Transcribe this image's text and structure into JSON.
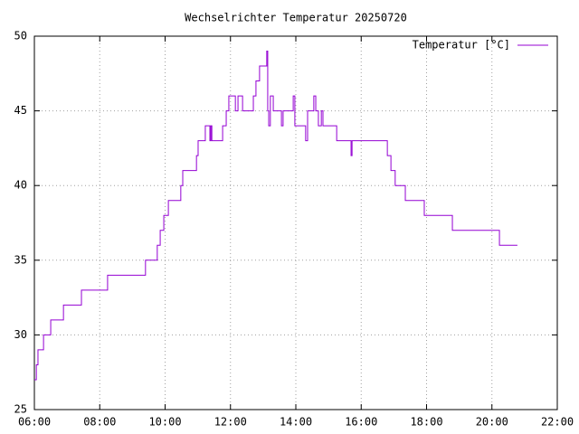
{
  "chart_data": {
    "type": "line",
    "title": "Wechselrichter Temperatur 20250720",
    "x": [
      6.0,
      6.06,
      6.06,
      6.11,
      6.11,
      6.28,
      6.28,
      6.5,
      6.5,
      6.89,
      6.89,
      7.44,
      7.44,
      8.24,
      8.24,
      9.4,
      9.4,
      9.76,
      9.76,
      9.85,
      9.85,
      9.96,
      9.96,
      10.1,
      10.1,
      10.48,
      10.48,
      10.54,
      10.54,
      10.96,
      10.96,
      11.01,
      11.01,
      11.23,
      11.23,
      11.37,
      11.37,
      11.4,
      11.4,
      11.43,
      11.43,
      11.76,
      11.76,
      11.87,
      11.87,
      11.95,
      11.95,
      12.15,
      12.15,
      12.23,
      12.23,
      12.37,
      12.37,
      12.7,
      12.7,
      12.78,
      12.78,
      12.89,
      12.89,
      13.11,
      13.11,
      13.14,
      13.14,
      13.17,
      13.17,
      13.22,
      13.22,
      13.31,
      13.31,
      13.56,
      13.56,
      13.61,
      13.61,
      13.92,
      13.92,
      13.97,
      13.97,
      14.3,
      14.3,
      14.36,
      14.36,
      14.55,
      14.55,
      14.61,
      14.61,
      14.69,
      14.69,
      14.78,
      14.78,
      14.83,
      14.83,
      15.25,
      15.25,
      15.69,
      15.69,
      15.72,
      15.72,
      16.8,
      16.8,
      16.91,
      16.91,
      17.04,
      17.04,
      17.35,
      17.35,
      17.93,
      17.93,
      18.79,
      18.79,
      20.23,
      20.23,
      20.78
    ],
    "series": [
      {
        "name": "Temperatur [°C]",
        "color": "#9400d3",
        "values": [
          27,
          27,
          28,
          28,
          29,
          29,
          30,
          30,
          31,
          31,
          32,
          32,
          33,
          33,
          34,
          34,
          35,
          35,
          36,
          36,
          37,
          37,
          38,
          38,
          39,
          39,
          40,
          40,
          41,
          41,
          42,
          42,
          43,
          43,
          44,
          44,
          43,
          43,
          44,
          44,
          43,
          43,
          44,
          44,
          45,
          45,
          46,
          46,
          45,
          45,
          46,
          46,
          45,
          45,
          46,
          46,
          47,
          47,
          48,
          48,
          49,
          49,
          45,
          45,
          44,
          44,
          46,
          46,
          45,
          45,
          44,
          44,
          45,
          45,
          46,
          46,
          44,
          44,
          43,
          43,
          45,
          45,
          46,
          46,
          45,
          45,
          44,
          44,
          45,
          45,
          44,
          44,
          43,
          43,
          42,
          42,
          43,
          43,
          42,
          42,
          41,
          41,
          40,
          40,
          39,
          39,
          38,
          38,
          37,
          37,
          36,
          36
        ]
      }
    ],
    "xlim": [
      6,
      22
    ],
    "xticks": [
      {
        "value": 6,
        "label": "06:00"
      },
      {
        "value": 8,
        "label": "08:00"
      },
      {
        "value": 10,
        "label": "10:00"
      },
      {
        "value": 12,
        "label": "12:00"
      },
      {
        "value": 14,
        "label": "14:00"
      },
      {
        "value": 16,
        "label": "16:00"
      },
      {
        "value": 18,
        "label": "18:00"
      },
      {
        "value": 20,
        "label": "20:00"
      },
      {
        "value": 22,
        "label": "22:00"
      }
    ],
    "ylim": [
      25,
      50
    ],
    "yticks": [
      25,
      30,
      35,
      40,
      45,
      50
    ],
    "grid": true,
    "legend": "top-right"
  }
}
